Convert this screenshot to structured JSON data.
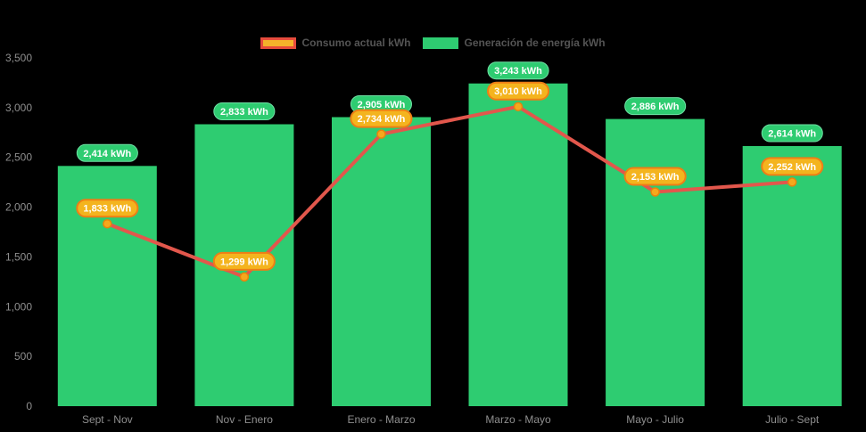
{
  "page": {
    "background_color": "#000000"
  },
  "legend": {
    "text_color": "#545454",
    "items": [
      {
        "label": "Consumo actual kWh",
        "swatch_fill": "#f4b32a",
        "swatch_border": "#e74c3c",
        "series_type": "line"
      },
      {
        "label": "Generación de energía kWh",
        "swatch_fill": "#2ecc71",
        "swatch_border": "#2ecc71",
        "series_type": "bar"
      }
    ]
  },
  "chart_data": {
    "type": "bar",
    "combo": "bar+line",
    "title": "",
    "xlabel": "",
    "ylabel": "",
    "grid": false,
    "legend_position": "top-center",
    "axis_text_color": "#8f8f8f",
    "categories": [
      "Sept - Nov",
      "Nov - Enero",
      "Enero - Marzo",
      "Marzo - Mayo",
      "Mayo - Julio",
      "Julio - Sept"
    ],
    "series": [
      {
        "name": "Generación de energía kWh",
        "type": "bar",
        "color": "#2ecc71",
        "values": [
          2414,
          2833,
          2905,
          3243,
          2886,
          2614
        ],
        "value_labels": [
          "2,414 kWh",
          "2,833 kWh",
          "2,905 kWh",
          "3,243 kWh",
          "2,886 kWh",
          "2,614 kWh"
        ],
        "label_pill": {
          "fill": "#2ecc71",
          "border": "#6fe0a4",
          "border_width": 1,
          "text_color": "#ffffff"
        }
      },
      {
        "name": "Consumo actual kWh",
        "type": "line",
        "color": "#e2574c",
        "anchor_fill": "#f5a81d",
        "anchor_border": "#e8830c",
        "values": [
          1833,
          1299,
          2734,
          3010,
          2153,
          2252
        ],
        "value_labels": [
          "1,833 kWh",
          "1,299 kWh",
          "2,734 kWh",
          "3,010 kWh",
          "2,153 kWh",
          "2,252 kWh"
        ],
        "label_pill": {
          "fill": "#f4b41e",
          "border": "#ee7e16",
          "border_width": 2,
          "text_color": "#ffffff"
        }
      }
    ],
    "ylim": [
      0,
      3500
    ],
    "yticks": [
      {
        "value": 0,
        "label": "0"
      },
      {
        "value": 500,
        "label": "500"
      },
      {
        "value": 1000,
        "label": "1,000"
      },
      {
        "value": 1500,
        "label": "1,500"
      },
      {
        "value": 2000,
        "label": "2,000"
      },
      {
        "value": 2500,
        "label": "2,500"
      },
      {
        "value": 3000,
        "label": "3,000"
      },
      {
        "value": 3500,
        "label": "3,500"
      }
    ]
  }
}
